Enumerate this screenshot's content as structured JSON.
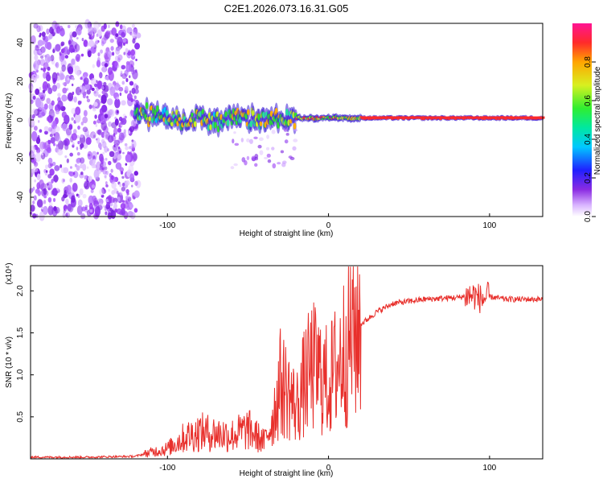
{
  "title": "C2E1.2026.073.16.31.G05",
  "chart_data": [
    {
      "type": "heatmap",
      "name": "spectrogram",
      "xlabel": "Height of straight line (km)",
      "ylabel": "Frequency (Hz)",
      "xlim": [
        -185,
        133
      ],
      "ylim": [
        -50,
        50
      ],
      "xticks": [
        -100,
        0,
        100
      ],
      "yticks": [
        -40,
        -20,
        0,
        20,
        40
      ],
      "noise_region_x": [
        -185,
        -118
      ],
      "ridge": {
        "x": [
          -120,
          -110,
          -100,
          -90,
          -80,
          -70,
          -60,
          -50,
          -40,
          -30,
          -20,
          -10,
          0,
          10,
          20,
          40,
          60,
          80,
          90,
          100,
          133
        ],
        "frequency": [
          2,
          3,
          1,
          0,
          1,
          0,
          1,
          0,
          0,
          0,
          1,
          1,
          1,
          1,
          1,
          1,
          1,
          1,
          1,
          1,
          1
        ]
      },
      "colorbar": {
        "label": "Normalized spectral amplitude",
        "range": [
          0,
          1
        ],
        "ticks": [
          "0.0",
          "0.2",
          "0.4",
          "0.6",
          "0.8"
        ]
      }
    },
    {
      "type": "line",
      "name": "snr",
      "xlabel": "Height of straight line (km)",
      "ylabel": "SNR (10 * v/v)",
      "scale_note": "(x10⁴)",
      "xlim": [
        -185,
        133
      ],
      "ylim": [
        0,
        2.3
      ],
      "xticks": [
        -100,
        0,
        100
      ],
      "yticks": [
        "0.5",
        "1.0",
        "1.5",
        "2.0"
      ],
      "color": "#e8302c",
      "series": [
        {
          "name": "SNR",
          "x": [
            -185,
            -150,
            -120,
            -110,
            -100,
            -90,
            -80,
            -70,
            -60,
            -50,
            -40,
            -35,
            -30,
            -25,
            -20,
            -15,
            -10,
            -5,
            0,
            5,
            10,
            15,
            20,
            30,
            40,
            60,
            80,
            90,
            95,
            100,
            110,
            133
          ],
          "values": [
            0.02,
            0.02,
            0.03,
            0.08,
            0.12,
            0.25,
            0.32,
            0.3,
            0.28,
            0.35,
            0.2,
            0.45,
            0.9,
            0.8,
            0.6,
            0.9,
            1.1,
            1.0,
            0.9,
            1.1,
            1.3,
            1.5,
            1.6,
            1.75,
            1.85,
            1.9,
            1.92,
            1.95,
            1.9,
            1.93,
            1.9,
            1.9
          ]
        }
      ]
    }
  ]
}
